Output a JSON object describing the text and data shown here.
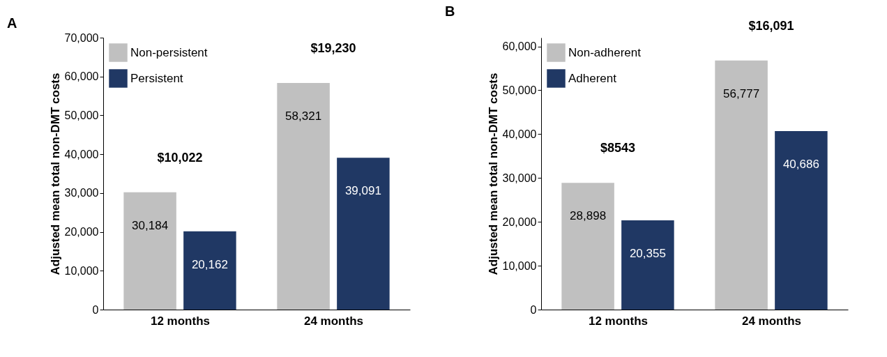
{
  "chart_data": [
    {
      "type": "bar",
      "title": "A",
      "ylabel": "Adjusted mean total non-DMT costs",
      "categories": [
        "12 months",
        "24 months"
      ],
      "series": [
        {
          "name": "Non-persistent",
          "color": "#c0c0c0",
          "values": [
            30184,
            58321
          ],
          "value_labels": [
            "30,184",
            "58,321"
          ]
        },
        {
          "name": "Persistent",
          "color": "#203864",
          "values": [
            20162,
            39091
          ],
          "value_labels": [
            "20,162",
            "39,091"
          ]
        }
      ],
      "ylim": [
        0,
        70000
      ],
      "yticks": [
        0,
        {
          "value": 10000,
          "label": "10,000"
        },
        {
          "value": 20000,
          "label": "20,000"
        },
        {
          "value": 30000,
          "label": "30,000"
        },
        {
          "value": 40000,
          "label": "40,000"
        },
        {
          "value": 50000,
          "label": "50,000"
        },
        {
          "value": 60000,
          "label": "60,000"
        },
        {
          "value": 70000,
          "label": "70,000"
        }
      ],
      "legend": "top left",
      "grid": false,
      "annotations": [
        "$10,022",
        "$19,230"
      ]
    },
    {
      "type": "bar",
      "title": "B",
      "ylabel": "Adjusted mean total non-DMT costs",
      "categories": [
        "12 months",
        "24 months"
      ],
      "series": [
        {
          "name": "Non-adherent",
          "color": "#c0c0c0",
          "values": [
            28898,
            56777
          ],
          "value_labels": [
            "28,898",
            "56,777"
          ]
        },
        {
          "name": "Adherent",
          "color": "#203864",
          "values": [
            20355,
            40686
          ],
          "value_labels": [
            "20,355",
            "40,686"
          ]
        }
      ],
      "ylim": [
        0,
        62000
      ],
      "yticks": [
        0,
        {
          "value": 10000,
          "label": "10,000"
        },
        {
          "value": 20000,
          "label": "20,000"
        },
        {
          "value": 30000,
          "label": "30,000"
        },
        {
          "value": 40000,
          "label": "40,000"
        },
        {
          "value": 50000,
          "label": "50,000"
        },
        {
          "value": 60000,
          "label": "60,000"
        }
      ],
      "legend": "top left",
      "grid": false,
      "annotations": [
        "$8543",
        "$16,091"
      ]
    }
  ]
}
